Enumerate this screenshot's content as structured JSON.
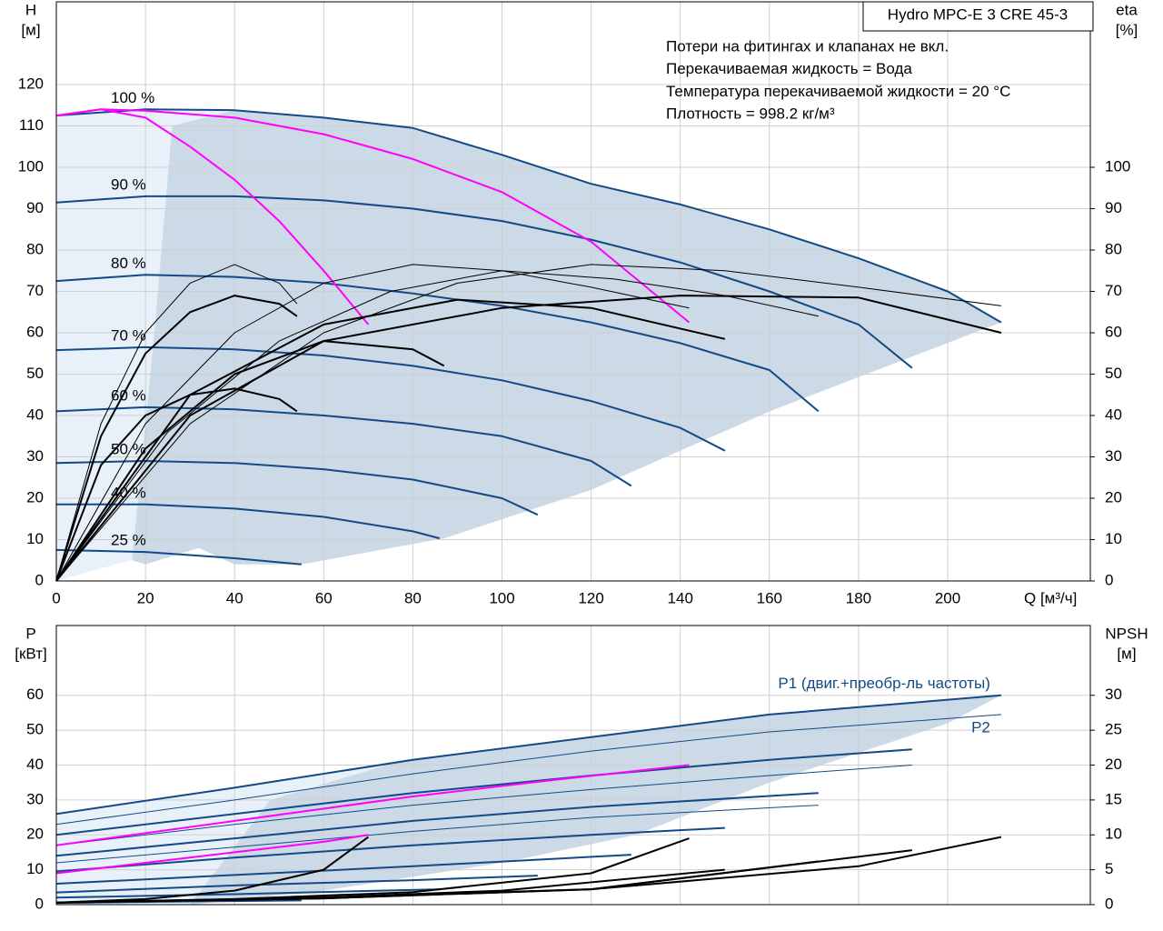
{
  "chart_data": [
    {
      "type": "line",
      "title": "Hydro MPC-E 3 CRE 45-3",
      "notes": [
        "Потери на фитингах и клапанах не вкл.",
        "Перекачиваемая жидкость = Вода",
        "Температура перекачиваемой жидкости = 20 °C",
        "Плотность = 998.2 кг/м³"
      ],
      "ylabel": [
        "H",
        "[м]"
      ],
      "y2label": [
        "eta",
        "[%]"
      ],
      "xlabel": "Q [м³/ч]",
      "xlim": [
        0,
        232
      ],
      "xticks": [
        0,
        20,
        40,
        60,
        80,
        100,
        120,
        140,
        160,
        180,
        200
      ],
      "ylim": [
        0,
        140
      ],
      "yticks": [
        0,
        10,
        20,
        30,
        40,
        50,
        60,
        70,
        80,
        90,
        100,
        110,
        120
      ],
      "y2lim": [
        0,
        140
      ],
      "y2ticks": [
        0,
        10,
        20,
        30,
        40,
        50,
        60,
        70,
        80,
        90,
        100
      ],
      "grid": true,
      "regions": [
        {
          "color": "#e8f1f9",
          "x": [
            0,
            20,
            40,
            60,
            78,
            60,
            40,
            20,
            0
          ],
          "y": [
            112.5,
            114,
            113.8,
            112,
            109.8,
            60,
            30,
            6,
            0
          ]
        },
        {
          "color": "#ccd9e6",
          "x": [
            26,
            40,
            60,
            78,
            100,
            120,
            140,
            160,
            180,
            200,
            212,
            160,
            120,
            87,
            55,
            40,
            32,
            20,
            17,
            22
          ],
          "y": [
            110,
            113.8,
            112,
            109.8,
            103,
            96,
            91,
            85,
            78,
            70,
            62.5,
            41,
            22,
            10.3,
            4,
            4,
            8,
            4,
            5,
            60
          ]
        }
      ],
      "series": [
        {
          "name": "100 %",
          "color": "#134a85",
          "width": 2,
          "x": [
            0,
            20,
            40,
            60,
            80,
            100,
            120,
            140,
            160,
            180,
            200,
            212
          ],
          "values": [
            112.5,
            114,
            113.8,
            112,
            109.5,
            103,
            96,
            91,
            85,
            78,
            70,
            62.5
          ]
        },
        {
          "name": "90 %",
          "color": "#134a85",
          "width": 2,
          "x": [
            0,
            20,
            40,
            60,
            80,
            100,
            120,
            140,
            160,
            180,
            192
          ],
          "values": [
            91.5,
            93,
            93,
            92,
            90,
            87,
            82.5,
            77,
            70,
            62,
            51.5
          ]
        },
        {
          "name": "80 %",
          "color": "#134a85",
          "width": 2,
          "x": [
            0,
            20,
            40,
            60,
            80,
            100,
            120,
            140,
            160,
            171
          ],
          "values": [
            72.5,
            74,
            73.5,
            72,
            69.5,
            66.5,
            62.5,
            57.5,
            51,
            41
          ]
        },
        {
          "name": "70 %",
          "color": "#134a85",
          "width": 2,
          "x": [
            0,
            20,
            40,
            60,
            80,
            100,
            120,
            140,
            150
          ],
          "values": [
            55.8,
            56.5,
            56,
            54.5,
            52,
            48.5,
            43.5,
            37,
            31.5
          ]
        },
        {
          "name": "60 %",
          "color": "#134a85",
          "width": 2,
          "x": [
            0,
            20,
            40,
            60,
            80,
            100,
            120,
            129
          ],
          "values": [
            41,
            42,
            41.5,
            40,
            38,
            35,
            29,
            23
          ]
        },
        {
          "name": "50 %",
          "color": "#134a85",
          "width": 2,
          "x": [
            0,
            20,
            40,
            60,
            80,
            100,
            108
          ],
          "values": [
            28.5,
            29,
            28.5,
            27,
            24.5,
            20,
            16
          ]
        },
        {
          "name": "40 %",
          "color": "#134a85",
          "width": 2,
          "x": [
            0,
            20,
            40,
            60,
            80,
            86
          ],
          "values": [
            18.5,
            18.5,
            17.5,
            15.5,
            12,
            10.3
          ]
        },
        {
          "name": "25 %",
          "color": "#134a85",
          "width": 2,
          "x": [
            0,
            20,
            40,
            55
          ],
          "values": [
            7.5,
            7,
            5.5,
            4
          ]
        },
        {
          "color": "#ff00ff",
          "width": 2,
          "x": [
            0,
            10,
            20,
            30,
            40,
            50,
            60,
            70
          ],
          "values": [
            112.5,
            114,
            112,
            105,
            97,
            87,
            75,
            62
          ]
        },
        {
          "color": "#ff00ff",
          "width": 2,
          "x": [
            0,
            10,
            20,
            40,
            60,
            80,
            100,
            120,
            142
          ],
          "values": [
            112.5,
            114,
            113.7,
            112,
            108,
            102,
            94,
            82,
            62.5
          ]
        },
        {
          "color": "#000000",
          "width": 1,
          "axis": "y2",
          "x": [
            0,
            10,
            20,
            30,
            40,
            50,
            54
          ],
          "values": [
            0,
            38,
            60,
            72,
            76.5,
            72,
            67
          ]
        },
        {
          "color": "#000000",
          "width": 1,
          "axis": "y2",
          "x": [
            0,
            20,
            40,
            60,
            80,
            100,
            120,
            142
          ],
          "values": [
            0,
            38,
            60,
            72,
            76.5,
            75,
            71,
            66
          ]
        },
        {
          "color": "#000000",
          "width": 1,
          "axis": "y2",
          "x": [
            0,
            30,
            60,
            90,
            120,
            150,
            180,
            212
          ],
          "values": [
            0,
            38,
            60,
            72,
            76.5,
            75,
            71,
            66.5
          ]
        },
        {
          "color": "#000000",
          "width": 1,
          "axis": "y2",
          "x": [
            0,
            25,
            50,
            75,
            100,
            125,
            150,
            171
          ],
          "values": [
            0,
            36,
            58,
            70,
            75,
            73,
            69,
            64
          ]
        },
        {
          "color": "#000000",
          "width": 2,
          "axis": "y2",
          "x": [
            0,
            10,
            20,
            30,
            40,
            50,
            54
          ],
          "values": [
            0,
            28,
            40,
            45,
            46.5,
            44,
            41
          ]
        },
        {
          "color": "#000000",
          "width": 2,
          "axis": "y2",
          "x": [
            0,
            10,
            20,
            30,
            40,
            50,
            54
          ],
          "values": [
            0,
            35,
            55,
            65,
            69,
            67,
            64
          ]
        },
        {
          "color": "#000000",
          "width": 2,
          "axis": "y2",
          "x": [
            0,
            30,
            60,
            90,
            120,
            150
          ],
          "values": [
            0,
            45,
            62,
            68,
            66,
            58.5
          ]
        },
        {
          "color": "#000000",
          "width": 2,
          "axis": "y2",
          "x": [
            0,
            30,
            60,
            100,
            140,
            180,
            212
          ],
          "values": [
            0,
            40,
            58,
            66,
            69,
            68.5,
            60
          ]
        },
        {
          "color": "#000000",
          "width": 2,
          "axis": "y2",
          "x": [
            0,
            20,
            40,
            60,
            80,
            87
          ],
          "values": [
            0,
            32,
            50,
            58,
            56,
            52
          ]
        }
      ]
    },
    {
      "type": "line",
      "ylabel": [
        "P",
        "[кВт]"
      ],
      "y2label": [
        "NPSH",
        "[м]"
      ],
      "xlim": [
        0,
        232
      ],
      "xticks": [
        0,
        20,
        40,
        60,
        80,
        100,
        120,
        140,
        160,
        180,
        200
      ],
      "ylim": [
        0,
        80
      ],
      "yticks": [
        0,
        10,
        20,
        30,
        40,
        50,
        60
      ],
      "y2lim": [
        0,
        40
      ],
      "y2ticks": [
        0,
        5,
        10,
        15,
        20,
        25,
        30
      ],
      "grid": true,
      "regions": [
        {
          "color": "#e8f1f9",
          "x": [
            0,
            40,
            78,
            48,
            30,
            0
          ],
          "y": [
            26,
            33.5,
            41.5,
            30,
            0,
            0
          ]
        },
        {
          "color": "#ccd9e6",
          "x": [
            48,
            78,
            120,
            160,
            212,
            200,
            160,
            130,
            100,
            60,
            30
          ],
          "y": [
            30,
            41.5,
            48,
            54.5,
            60,
            52,
            35,
            20,
            12,
            4,
            0
          ]
        }
      ],
      "series": [
        {
          "name": "P1 (двиг.+преобр-ль частоты)",
          "color": "#134a85",
          "width": 2,
          "x": [
            0,
            40,
            80,
            120,
            160,
            212
          ],
          "values": [
            26,
            33.5,
            41.5,
            48,
            54.5,
            60
          ]
        },
        {
          "name": "P2",
          "color": "#134a85",
          "width": 1,
          "x": [
            0,
            40,
            80,
            120,
            160,
            212
          ],
          "values": [
            23,
            30,
            37.5,
            44,
            49.5,
            54.5
          ]
        },
        {
          "color": "#134a85",
          "width": 2,
          "x": [
            0,
            40,
            80,
            120,
            160,
            192
          ],
          "values": [
            20,
            26,
            32,
            37,
            41.5,
            44.5
          ]
        },
        {
          "color": "#134a85",
          "width": 1,
          "x": [
            0,
            40,
            80,
            120,
            160,
            192
          ],
          "values": [
            17,
            23,
            28.5,
            33,
            37,
            40
          ]
        },
        {
          "color": "#134a85",
          "width": 2,
          "x": [
            0,
            40,
            80,
            120,
            171
          ],
          "values": [
            14,
            19,
            24,
            28,
            32
          ]
        },
        {
          "color": "#134a85",
          "width": 1,
          "x": [
            0,
            40,
            80,
            120,
            171
          ],
          "values": [
            12,
            16.5,
            21,
            25,
            28.5
          ]
        },
        {
          "color": "#134a85",
          "width": 2,
          "x": [
            0,
            40,
            80,
            120,
            150
          ],
          "values": [
            9.5,
            13.5,
            17,
            20,
            22
          ]
        },
        {
          "color": "#134a85",
          "width": 2,
          "x": [
            0,
            40,
            80,
            129
          ],
          "values": [
            6,
            8.5,
            11,
            14.3
          ]
        },
        {
          "color": "#134a85",
          "width": 2,
          "x": [
            0,
            40,
            80,
            108
          ],
          "values": [
            3.5,
            5.5,
            7,
            8.3
          ]
        },
        {
          "color": "#134a85",
          "width": 2,
          "x": [
            0,
            40,
            86
          ],
          "values": [
            2,
            3,
            4.4
          ]
        },
        {
          "color": "#134a85",
          "width": 2,
          "x": [
            0,
            30,
            55
          ],
          "values": [
            0.5,
            0.9,
            1.2
          ]
        },
        {
          "color": "#ff00ff",
          "width": 2,
          "x": [
            0,
            40,
            80,
            110,
            142
          ],
          "values": [
            17,
            24,
            31,
            35.5,
            40
          ]
        },
        {
          "color": "#ff00ff",
          "width": 2,
          "x": [
            0,
            20,
            40,
            60,
            70
          ],
          "values": [
            9,
            12,
            15,
            18,
            20
          ]
        },
        {
          "color": "#000000",
          "width": 2,
          "axis": "y2",
          "x": [
            0,
            20,
            40,
            60,
            70
          ],
          "values": [
            0.3,
            0.8,
            2,
            5,
            9.7
          ]
        },
        {
          "color": "#000000",
          "width": 2,
          "axis": "y2",
          "x": [
            0,
            40,
            80,
            120,
            142
          ],
          "values": [
            0.3,
            0.8,
            1.8,
            4.5,
            9.5
          ]
        },
        {
          "color": "#000000",
          "width": 2,
          "axis": "y2",
          "x": [
            0,
            50,
            100,
            150
          ],
          "values": [
            0.3,
            0.8,
            2,
            5
          ]
        },
        {
          "color": "#000000",
          "width": 2,
          "axis": "y2",
          "x": [
            0,
            60,
            120,
            171
          ],
          "values": [
            0.3,
            0.9,
            2.2,
            6.2
          ]
        },
        {
          "color": "#000000",
          "width": 2,
          "axis": "y2",
          "x": [
            0,
            60,
            120,
            192
          ],
          "values": [
            0.3,
            0.9,
            2.2,
            7.8
          ]
        },
        {
          "color": "#000000",
          "width": 2,
          "axis": "y2",
          "x": [
            0,
            60,
            120,
            180,
            212
          ],
          "values": [
            0.3,
            1,
            2.2,
            5.5,
            9.7
          ]
        }
      ]
    }
  ]
}
